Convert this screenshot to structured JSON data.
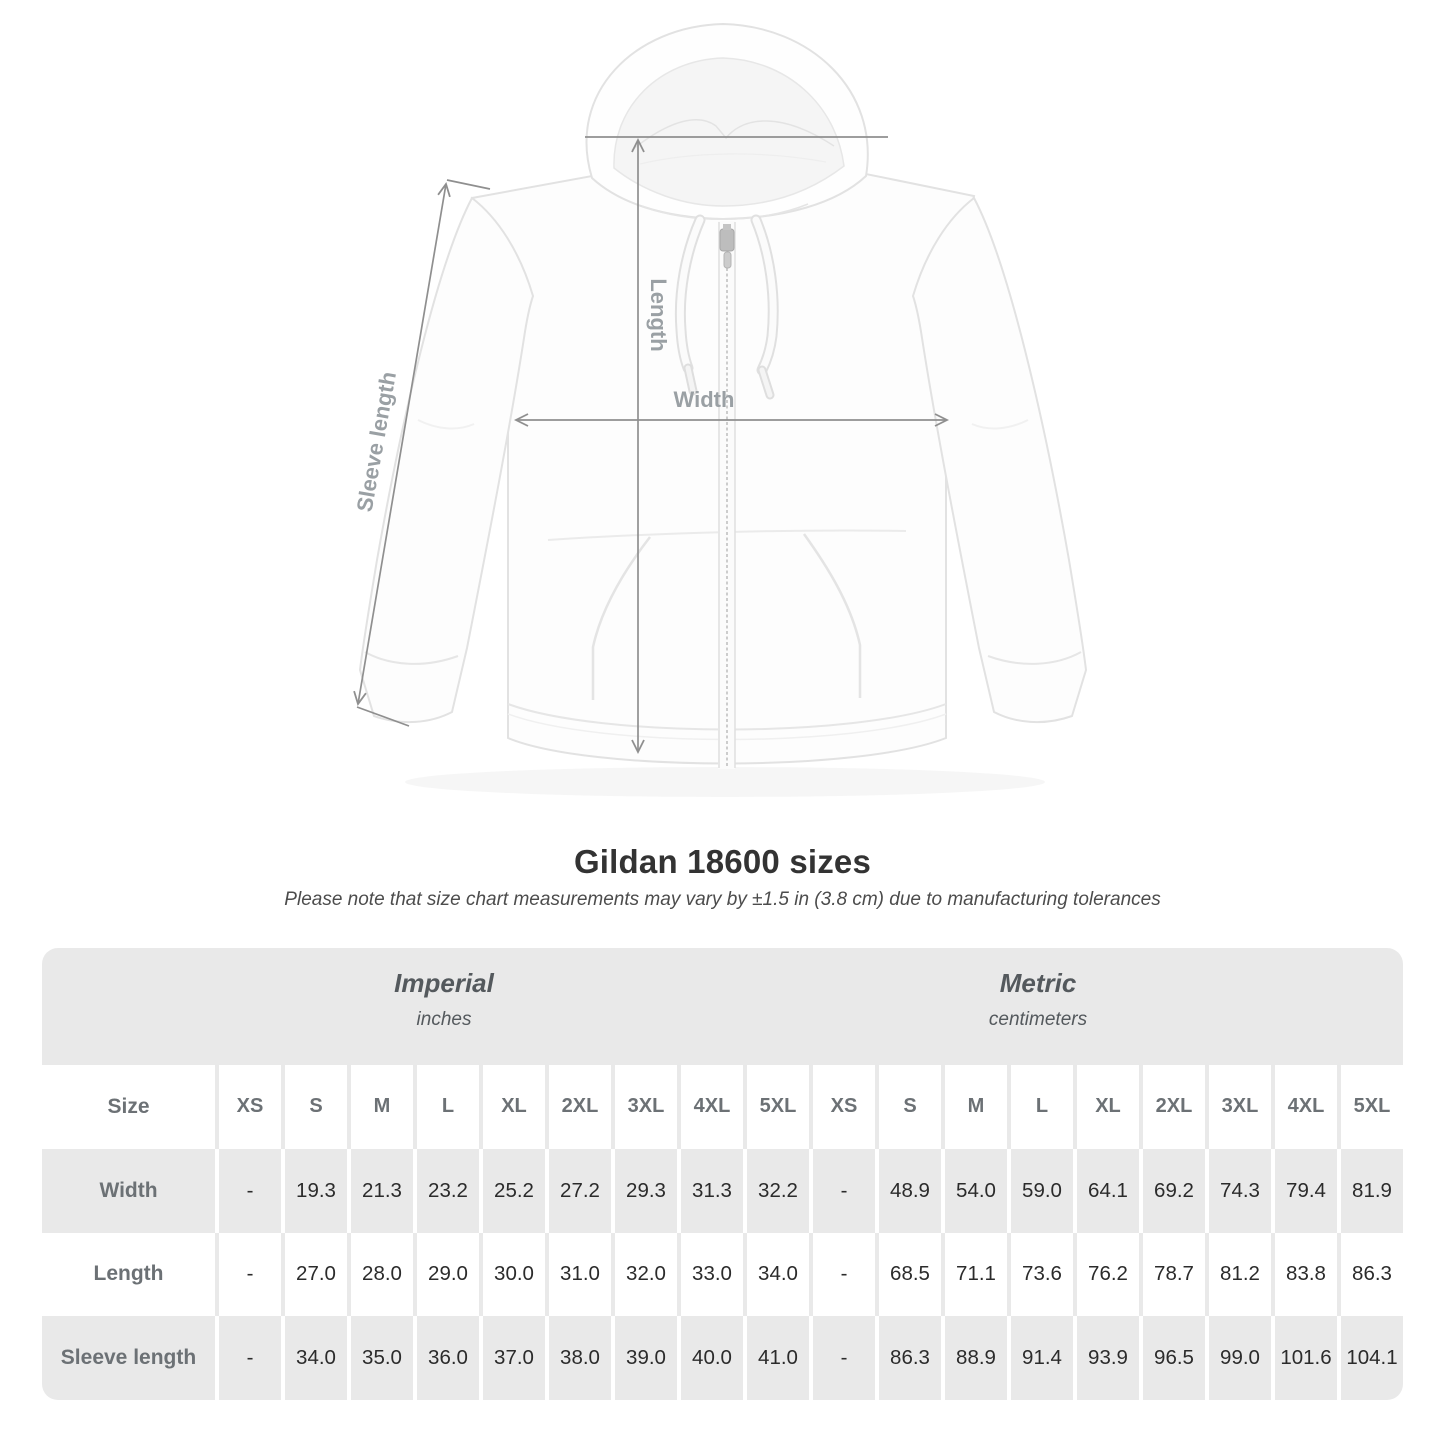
{
  "figure": {
    "measure_labels": {
      "length": "Length",
      "width": "Width",
      "sleeve_length": "Sleeve length"
    }
  },
  "heading": {
    "title": "Gildan 18600 sizes",
    "note": "Please note that size chart measurements may vary by ±1.5 in (3.8 cm) due to manufacturing tolerances"
  },
  "chart_data": {
    "type": "table",
    "title": "Gildan 18600 sizes",
    "unit_groups": [
      {
        "label": "Imperial",
        "unit": "inches"
      },
      {
        "label": "Metric",
        "unit": "centimeters"
      }
    ],
    "size_header": "Size",
    "sizes": [
      "XS",
      "S",
      "M",
      "L",
      "XL",
      "2XL",
      "3XL",
      "4XL",
      "5XL"
    ],
    "rows": [
      {
        "label": "Width",
        "imperial": [
          "-",
          "19.3",
          "21.3",
          "23.2",
          "25.2",
          "27.2",
          "29.3",
          "31.3",
          "32.2"
        ],
        "metric": [
          "-",
          "48.9",
          "54.0",
          "59.0",
          "64.1",
          "69.2",
          "74.3",
          "79.4",
          "81.9"
        ]
      },
      {
        "label": "Length",
        "imperial": [
          "-",
          "27.0",
          "28.0",
          "29.0",
          "30.0",
          "31.0",
          "32.0",
          "33.0",
          "34.0"
        ],
        "metric": [
          "-",
          "68.5",
          "71.1",
          "73.6",
          "76.2",
          "78.7",
          "81.2",
          "83.8",
          "86.3"
        ]
      },
      {
        "label": "Sleeve length",
        "imperial": [
          "-",
          "34.0",
          "35.0",
          "36.0",
          "37.0",
          "38.0",
          "39.0",
          "40.0",
          "41.0"
        ],
        "metric": [
          "-",
          "86.3",
          "88.9",
          "91.4",
          "93.9",
          "96.5",
          "99.0",
          "101.6",
          "104.1"
        ]
      }
    ]
  },
  "colors": {
    "row_stripe": "#e9e9e9",
    "measure_line": "#8f8f8f",
    "measure_label": "#9aa0a4",
    "garment_stroke": "#e2e2e2",
    "title_text": "#333333",
    "value_text": "#2b2b2b",
    "header_text": "#6c7175"
  }
}
